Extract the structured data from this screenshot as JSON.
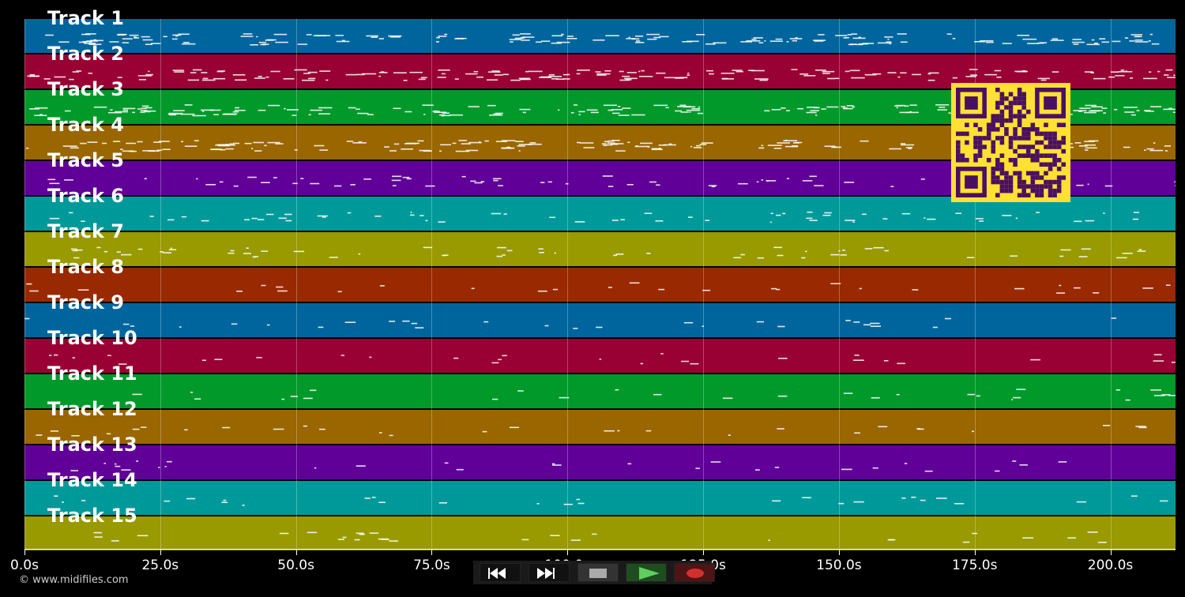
{
  "tracks": [
    {
      "label": "Track 1",
      "color": "#00659d"
    },
    {
      "label": "Track 2",
      "color": "#990033"
    },
    {
      "label": "Track 3",
      "color": "#00992a"
    },
    {
      "label": "Track 4",
      "color": "#996600"
    },
    {
      "label": "Track 5",
      "color": "#600099"
    },
    {
      "label": "Track 6",
      "color": "#00999a"
    },
    {
      "label": "Track 7",
      "color": "#999900"
    },
    {
      "label": "Track 8",
      "color": "#992900"
    },
    {
      "label": "Track 9",
      "color": "#00659d"
    },
    {
      "label": "Track 10",
      "color": "#990033"
    },
    {
      "label": "Track 11",
      "color": "#00992a"
    },
    {
      "label": "Track 12",
      "color": "#996600"
    },
    {
      "label": "Track 13",
      "color": "#600099"
    },
    {
      "label": "Track 14",
      "color": "#00999a"
    },
    {
      "label": "Track 15",
      "color": "#999900"
    }
  ],
  "time_axis": {
    "range_seconds": [
      0,
      212
    ],
    "ticks": [
      {
        "value": 0,
        "label": "0.0s"
      },
      {
        "value": 25,
        "label": "25.0s"
      },
      {
        "value": 50,
        "label": "50.0s"
      },
      {
        "value": 75,
        "label": "75.0s"
      },
      {
        "value": 100,
        "label": "100.0s"
      },
      {
        "value": 125,
        "label": "125.0s"
      },
      {
        "value": 150,
        "label": "150.0s"
      },
      {
        "value": 175,
        "label": "175.0s"
      },
      {
        "value": 200,
        "label": "200.0s"
      }
    ]
  },
  "controls": [
    {
      "name": "rewind-button",
      "icon": "rewind-icon",
      "color": "#111111"
    },
    {
      "name": "fast-forward-button",
      "icon": "fast-forward-icon",
      "color": "#111111"
    },
    {
      "name": "stop-button",
      "icon": "stop-icon",
      "color": "#333333"
    },
    {
      "name": "play-button",
      "icon": "play-icon",
      "color": "#1f4d1f"
    },
    {
      "name": "record-button",
      "icon": "record-icon",
      "color": "#4d1515"
    }
  ],
  "copyright": "© www.midifiles.com",
  "qr_color": "#ffe033"
}
